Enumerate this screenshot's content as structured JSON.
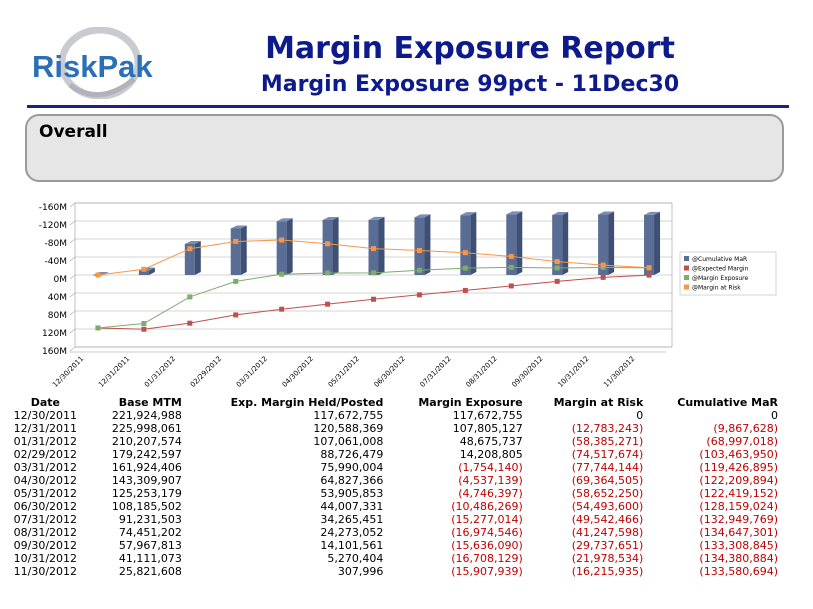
{
  "header": {
    "logo_text": "RiskPak",
    "title": "Margin Exposure Report",
    "subtitle": "Margin Exposure 99pct - 11Dec30"
  },
  "section": {
    "title": "Overall"
  },
  "colors": {
    "title": "#0d1a8c",
    "cumulative_mar": "#5a6d94",
    "expected_margin": "#c0504d",
    "margin_exposure": "#7dac6b",
    "margin_at_risk": "#f79646",
    "negative_text": "#c00000"
  },
  "chart_data": {
    "type": "bar",
    "title": "",
    "xlabel": "",
    "ylabel": "",
    "y_axis_inverted": true,
    "ylim": [
      -160000000,
      160000000
    ],
    "y_ticks": [
      "-160M",
      "-120M",
      "-80M",
      "-40M",
      "0M",
      "40M",
      "80M",
      "120M",
      "160M"
    ],
    "categories": [
      "12/30/2011",
      "12/31/2011",
      "01/31/2012",
      "02/29/2012",
      "03/31/2012",
      "04/30/2012",
      "05/31/2012",
      "06/30/2012",
      "07/31/2012",
      "08/31/2012",
      "09/30/2012",
      "10/31/2012",
      "11/30/2012"
    ],
    "series": [
      {
        "name": "@Cumulative MaR",
        "kind": "bar",
        "values": [
          0,
          -9867628,
          -68997018,
          -103463950,
          -119426895,
          -122209894,
          -122419152,
          -128159024,
          -132949769,
          -134647301,
          -133308845,
          -134380884,
          -133580694
        ]
      },
      {
        "name": "@Expected Margin",
        "kind": "line",
        "values": [
          117672755,
          120588369,
          107061008,
          88726479,
          75990004,
          64827366,
          53905853,
          44007331,
          34265451,
          24273052,
          14101561,
          5270404,
          307996
        ]
      },
      {
        "name": "@Margin Exposure",
        "kind": "line",
        "values": [
          117672755,
          107805127,
          48675737,
          14208805,
          -1754140,
          -4537139,
          -4746397,
          -10486269,
          -15277014,
          -16974546,
          -15636090,
          -16708129,
          -15907939
        ]
      },
      {
        "name": "@Margin at Risk",
        "kind": "line",
        "values": [
          0,
          -12783243,
          -58385271,
          -74517674,
          -77744144,
          -69364505,
          -58652250,
          -54493600,
          -49542466,
          -41247598,
          -29737651,
          -21978534,
          -16215935
        ]
      }
    ],
    "legend_position": "right",
    "grid": true
  },
  "table": {
    "headers": [
      "Date",
      "Base MTM",
      "Exp. Margin Held/Posted",
      "Margin Exposure",
      "Margin at Risk",
      "Cumulative MaR"
    ],
    "rows": [
      [
        "12/30/2011",
        "221,924,988",
        "117,672,755",
        "117,672,755",
        "0",
        "0"
      ],
      [
        "12/31/2011",
        "225,998,061",
        "120,588,369",
        "107,805,127",
        "(12,783,243)",
        "(9,867,628)"
      ],
      [
        "01/31/2012",
        "210,207,574",
        "107,061,008",
        "48,675,737",
        "(58,385,271)",
        "(68,997,018)"
      ],
      [
        "02/29/2012",
        "179,242,597",
        "88,726,479",
        "14,208,805",
        "(74,517,674)",
        "(103,463,950)"
      ],
      [
        "03/31/2012",
        "161,924,406",
        "75,990,004",
        "(1,754,140)",
        "(77,744,144)",
        "(119,426,895)"
      ],
      [
        "04/30/2012",
        "143,309,907",
        "64,827,366",
        "(4,537,139)",
        "(69,364,505)",
        "(122,209,894)"
      ],
      [
        "05/31/2012",
        "125,253,179",
        "53,905,853",
        "(4,746,397)",
        "(58,652,250)",
        "(122,419,152)"
      ],
      [
        "06/30/2012",
        "108,185,502",
        "44,007,331",
        "(10,486,269)",
        "(54,493,600)",
        "(128,159,024)"
      ],
      [
        "07/31/2012",
        "91,231,503",
        "34,265,451",
        "(15,277,014)",
        "(49,542,466)",
        "(132,949,769)"
      ],
      [
        "08/31/2012",
        "74,451,202",
        "24,273,052",
        "(16,974,546)",
        "(41,247,598)",
        "(134,647,301)"
      ],
      [
        "09/30/2012",
        "57,967,813",
        "14,101,561",
        "(15,636,090)",
        "(29,737,651)",
        "(133,308,845)"
      ],
      [
        "10/31/2012",
        "41,111,073",
        "5,270,404",
        "(16,708,129)",
        "(21,978,534)",
        "(134,380,884)"
      ],
      [
        "11/30/2012",
        "25,821,608",
        "307,996",
        "(15,907,939)",
        "(16,215,935)",
        "(133,580,694)"
      ]
    ]
  }
}
